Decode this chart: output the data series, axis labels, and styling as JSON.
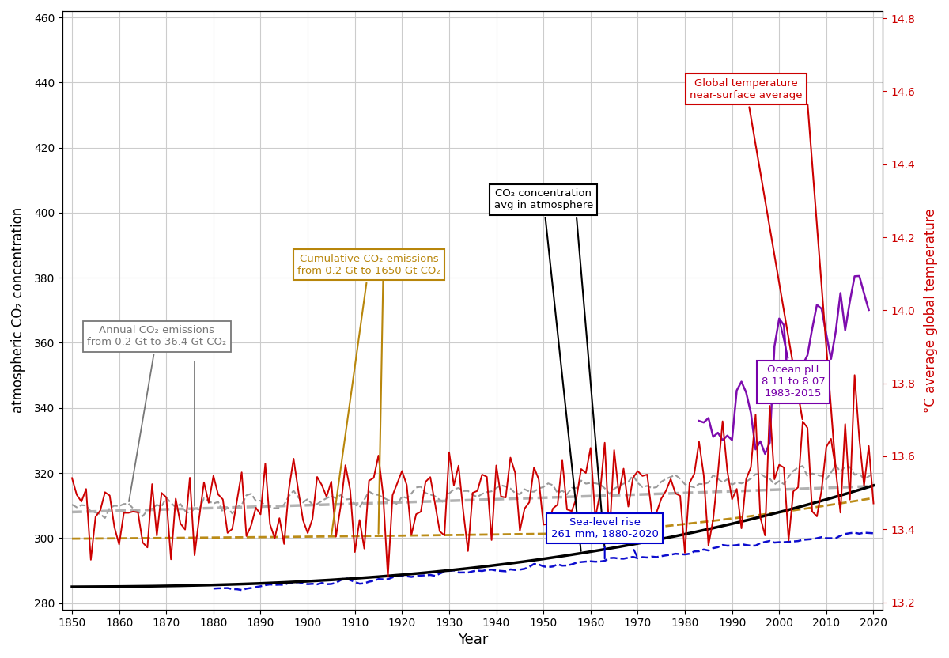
{
  "xlim": [
    1848,
    2022
  ],
  "ylim_left": [
    278,
    462
  ],
  "ylim_right": [
    13.18,
    14.82
  ],
  "xlabel": "Year",
  "ylabel_left": "atmospheric CO₂ concentration",
  "ylabel_right": "°C average global temperature",
  "background_color": "#ffffff",
  "grid_color": "#cccccc",
  "xticks": [
    1850,
    1860,
    1870,
    1880,
    1890,
    1900,
    1910,
    1920,
    1930,
    1940,
    1950,
    1960,
    1970,
    1980,
    1990,
    2000,
    2010,
    2020
  ],
  "yticks_left": [
    280,
    300,
    320,
    340,
    360,
    380,
    400,
    420,
    440,
    460
  ],
  "yticks_right": [
    13.2,
    13.4,
    13.6,
    13.8,
    14.0,
    14.2,
    14.4,
    14.6,
    14.8
  ],
  "co2_color": "#000000",
  "temp_color": "#cc0000",
  "cumco2_color": "#b8860b",
  "sealevel_color": "#0000cc",
  "ph_color": "#7700aa",
  "annual_color": "#888888",
  "temp_trend_color": "#aaaaaa"
}
